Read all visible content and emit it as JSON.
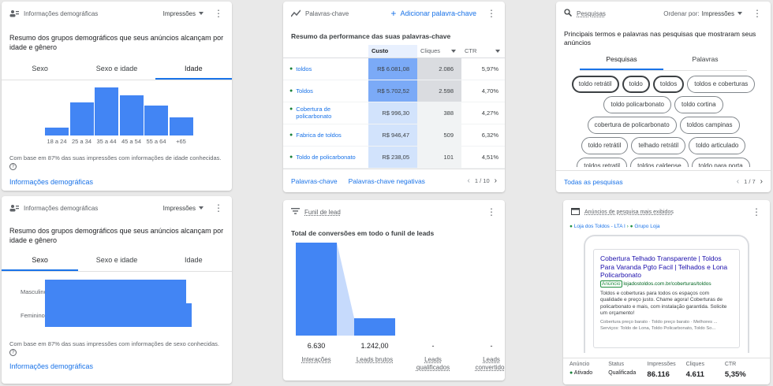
{
  "demo_age": {
    "title": "Informações demográficas",
    "dropdown": "Impressões",
    "subtitle": "Resumo dos grupos demográficos que seus anúncios alcançam por idade e gênero",
    "tabs": [
      "Sexo",
      "Sexo e idade",
      "Idade"
    ],
    "note": "Com base em 87% das suas impressões com informações de idade conhecidas.",
    "link": "Informações demográficas"
  },
  "keywords": {
    "title": "Palavras-chave",
    "add_label": "Adicionar palavra-chave",
    "subtitle": "Resumo da performance das suas palavras-chave",
    "columns": [
      "Custo",
      "Cliques",
      "CTR"
    ],
    "rows": [
      {
        "keyword": "toldos",
        "cost": "R$ 6.081,08",
        "clicks": "2.086",
        "ctr": "5,97%"
      },
      {
        "keyword": "Toldos",
        "cost": "R$ 5.702,52",
        "clicks": "2.598",
        "ctr": "4,70%"
      },
      {
        "keyword": "Cobertura de policarbonato",
        "cost": "R$ 996,30",
        "clicks": "388",
        "ctr": "4,27%"
      },
      {
        "keyword": "Fabrica de toldos",
        "cost": "R$ 946,47",
        "clicks": "509",
        "ctr": "6,32%"
      },
      {
        "keyword": "Toldo de policarbonato",
        "cost": "R$ 238,05",
        "clicks": "101",
        "ctr": "4,51%"
      }
    ],
    "footer_links": [
      "Palavras-chave",
      "Palavras-chave negativas"
    ],
    "pagination": "1 / 10"
  },
  "searches": {
    "title": "Pesquisas",
    "sort_label": "Ordenar por:",
    "sort_value": "Impressões",
    "subtitle": "Principais termos e palavras nas pesquisas que mostraram seus anúncios",
    "tabs": [
      "Pesquisas",
      "Palavras"
    ],
    "chips": [
      "toldo retrátil",
      "toldo",
      "toldos",
      "toldos e coberturas",
      "toldo policarbonato",
      "toldo cortina",
      "cobertura de policarbonato",
      "toldos campinas",
      "toldo retrátil",
      "telhado retrátil",
      "toldo articulado",
      "toldos retratil",
      "toldos caldense",
      "toldo para porta",
      "toldos e coberturas perto de mim",
      "toldo para garagem"
    ],
    "link": "Todas as pesquisas",
    "pagination": "1 / 7"
  },
  "demo_gender": {
    "title": "Informações demográficas",
    "dropdown": "Impressões",
    "subtitle": "Resumo dos grupos demográficos que seus anúncios alcançam por idade e gênero",
    "tabs": [
      "Sexo",
      "Sexo e idade",
      "Idade"
    ],
    "categories": [
      "Masculino",
      "Feminino"
    ],
    "note": "Com base em 87% das suas impressões com informações de sexo conhecidas.",
    "link": "Informações demográficas"
  },
  "funnel": {
    "title": "Funil de lead",
    "subtitle": "Total de conversões em todo o funil de leads",
    "stages": [
      {
        "value": "6.630",
        "label": "Interações"
      },
      {
        "value": "1.242,00",
        "label": "Leads brutos"
      },
      {
        "value": "-",
        "label": "Leads qualificados"
      },
      {
        "value": "-",
        "label": "Leads convertidos"
      }
    ]
  },
  "ads": {
    "title": "Anúncios de pesquisa mais exibidos",
    "breadcrumb_1": "Loja dos Toldos - LTA I",
    "breadcrumb_2": "Grupo Loja",
    "ad_title": "Cobertura Telhado Transparente | Toldos Para Varanda Pgto Facil | Telhados e Lona Policarbonato",
    "ad_badge": "Anúncio",
    "ad_url": "lojadostoldos.com.br/coberturas/toldos",
    "ad_desc": "Toldos e coberturas para todos os espaços com qualidade e preço justo. Chame agora! Coberturas de policarbonato e mais, com instalação garantida. Solicite um orçamento!",
    "ad_sitelinks": "Cobertura preço barato · Toldo preço barato · Melhores ... Serviços: Toldo de Lona, Toldo Policarbonato, Toldo So...",
    "stats": [
      {
        "label": "Anúncio",
        "value": "Ativado"
      },
      {
        "label": "Status",
        "value": "Qualificada"
      },
      {
        "label": "Impressões",
        "value": "86.116"
      },
      {
        "label": "Cliques",
        "value": "4.611"
      },
      {
        "label": "CTR",
        "value": "5,35%"
      }
    ]
  },
  "chart_data": [
    {
      "type": "bar",
      "categories": [
        "18 a 24",
        "25 a 34",
        "35 a 44",
        "45 a 54",
        "55 a 64",
        "+65"
      ],
      "values": [
        10,
        43,
        63,
        53,
        39,
        24
      ],
      "ylim": [
        0,
        70
      ]
    },
    {
      "type": "bar",
      "categories": [
        "Masculino",
        "Feminino"
      ],
      "values": [
        48,
        50
      ],
      "ylim": [
        0,
        50
      ]
    },
    {
      "type": "bar",
      "categories": [
        "Interações",
        "Leads brutos",
        "Leads qualificados",
        "Leads convertidos"
      ],
      "values": [
        6630,
        1242,
        0,
        0
      ]
    }
  ]
}
